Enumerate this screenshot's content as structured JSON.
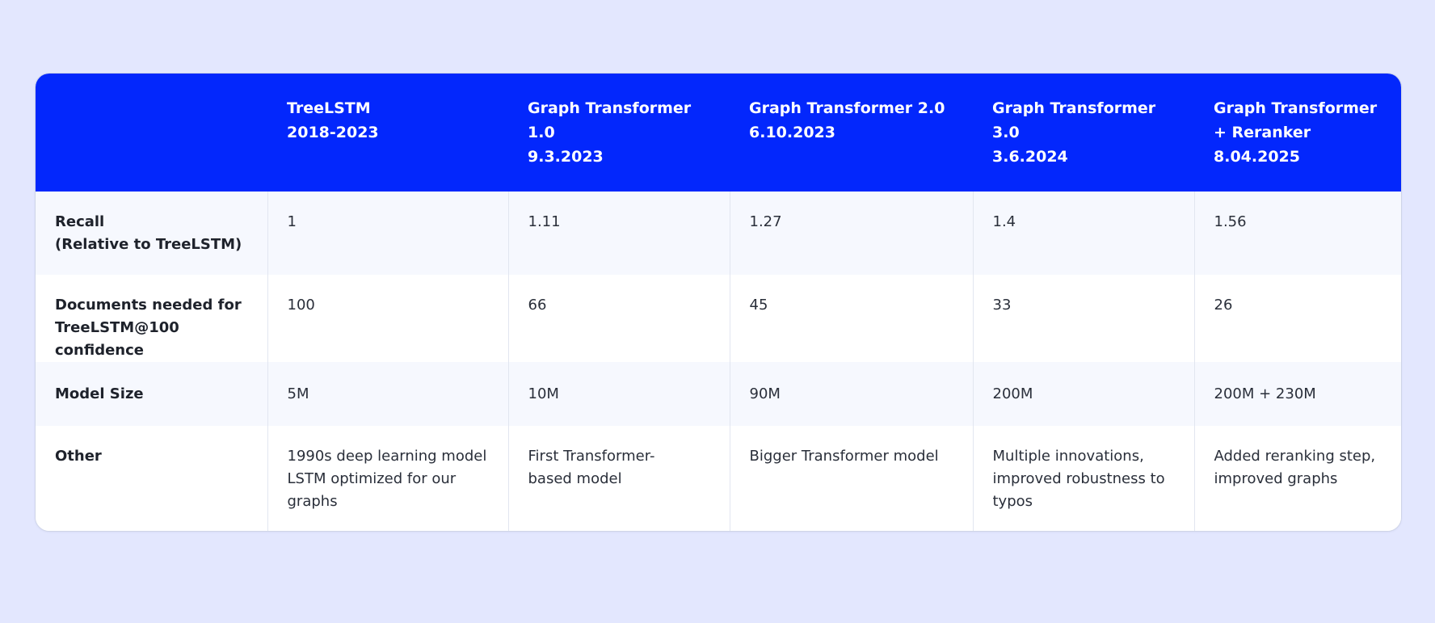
{
  "colors": {
    "background": "#e3e7fe",
    "header": "#0327fc",
    "header_text": "#ffffff",
    "row_alt": "#f6f8fe"
  },
  "table": {
    "columns": [
      {
        "lines": [
          "",
          ""
        ]
      },
      {
        "lines": [
          "TreeLSTM",
          "2018-2023"
        ]
      },
      {
        "lines": [
          "Graph Transformer 1.0",
          "9.3.2023"
        ]
      },
      {
        "lines": [
          "Graph Transformer 2.0",
          "6.10.2023"
        ]
      },
      {
        "lines": [
          "Graph Transformer 3.0",
          "3.6.2024"
        ]
      },
      {
        "lines": [
          "Graph Transformer",
          "+ Reranker",
          "8.04.2025"
        ]
      }
    ],
    "rows": [
      {
        "label": [
          "Recall",
          "(Relative to TreeLSTM)"
        ],
        "cells": [
          [
            "1"
          ],
          [
            "1.11"
          ],
          [
            "1.27"
          ],
          [
            "1.4"
          ],
          [
            "1.56"
          ]
        ]
      },
      {
        "label": [
          "Documents needed for",
          "TreeLSTM@100 confidence"
        ],
        "cells": [
          [
            "100"
          ],
          [
            "66"
          ],
          [
            "45"
          ],
          [
            "33"
          ],
          [
            "26"
          ]
        ]
      },
      {
        "label": [
          "Model Size"
        ],
        "cells": [
          [
            "5M"
          ],
          [
            "10M"
          ],
          [
            "90M"
          ],
          [
            "200M"
          ],
          [
            "200M + 230M"
          ]
        ]
      },
      {
        "label": [
          "Other"
        ],
        "cells": [
          [
            "1990s deep learning model",
            "LSTM optimized for our",
            "graphs"
          ],
          [
            "First Transformer-",
            "based model"
          ],
          [
            "Bigger Transformer model"
          ],
          [
            "Multiple innovations,",
            "improved robustness to",
            "typos"
          ],
          [
            "Added reranking step,",
            "improved graphs"
          ]
        ]
      }
    ]
  }
}
